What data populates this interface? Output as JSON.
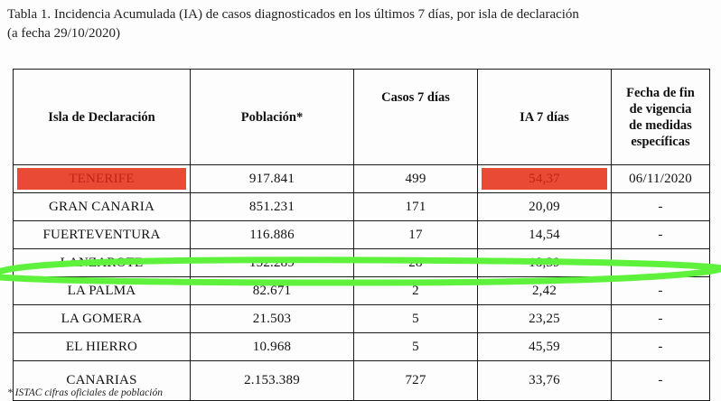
{
  "caption": {
    "line1": "Tabla 1. Incidencia Acumulada (IA) de casos diagnosticados en los últimos 7 días, por isla de declaración",
    "line2": "(a fecha 29/10/2020)"
  },
  "table": {
    "headers": {
      "isla": "Isla de Declaración",
      "poblacion": "Población*",
      "casos": "Casos 7 días",
      "ia": "IA 7 días",
      "fecha_l1": "Fecha de fin",
      "fecha_l2": "de vigencia",
      "fecha_l3": "de medidas",
      "fecha_l4": "específicas"
    },
    "rows": [
      {
        "isla": "TENERIFE",
        "poblacion": "917.841",
        "casos": "499",
        "ia": "54,37",
        "fecha": "06/11/2020"
      },
      {
        "isla": "GRAN CANARIA",
        "poblacion": "851.231",
        "casos": "171",
        "ia": "20,09",
        "fecha": "-"
      },
      {
        "isla": "FUERTEVENTURA",
        "poblacion": "116.886",
        "casos": "17",
        "ia": "14,54",
        "fecha": "-"
      },
      {
        "isla": "LANZAROTE",
        "poblacion": "152.289",
        "casos": "28",
        "ia": "18,39",
        "fecha": "-"
      },
      {
        "isla": "LA PALMA",
        "poblacion": "82.671",
        "casos": "2",
        "ia": "2,42",
        "fecha": "-"
      },
      {
        "isla": "LA GOMERA",
        "poblacion": "21.503",
        "casos": "5",
        "ia": "23,25",
        "fecha": "-"
      },
      {
        "isla": "EL HIERRO",
        "poblacion": "10.968",
        "casos": "5",
        "ia": "45,59",
        "fecha": "-"
      },
      {
        "isla": "CANARIAS",
        "poblacion": "2.153.389",
        "casos": "727",
        "ia": "33,76",
        "fecha": "-"
      }
    ]
  },
  "footnote": "* ISTAC cifras oficiales de población",
  "colors": {
    "highlight_fill": "#e84a35",
    "highlight_text": "#c02418",
    "marker_stroke": "#5ef23c"
  }
}
